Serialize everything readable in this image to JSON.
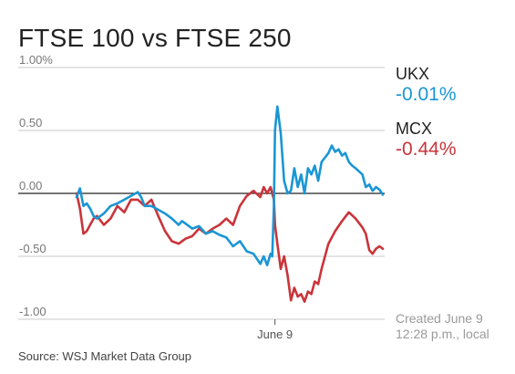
{
  "title": "FTSE 100 vs FTSE 250",
  "legend": [
    {
      "name": "UKX",
      "value": "-0.01%",
      "color": "#1a96d4"
    },
    {
      "name": "MCX",
      "value": "-0.44%",
      "color": "#c9343a"
    }
  ],
  "note_line1": "Created June 9",
  "note_line2": "12:28 p.m., local",
  "source": "Source: WSJ Market Data Group",
  "chart_data": {
    "type": "line",
    "ylim": [
      -1.0,
      1.0
    ],
    "yticks": [
      {
        "value": 1.0,
        "label": "1.00%"
      },
      {
        "value": 0.5,
        "label": "0.50"
      },
      {
        "value": 0.0,
        "label": "0.00"
      },
      {
        "value": -0.5,
        "label": "-0.50"
      },
      {
        "value": -1.0,
        "label": "-1.00"
      }
    ],
    "xlim": [
      0,
      100
    ],
    "xticks": [
      {
        "value": 58.3,
        "label": "June 9"
      }
    ],
    "series": [
      {
        "name": "UKX",
        "color": "#1a96d4",
        "x": [
          0,
          1,
          2,
          3,
          4,
          5,
          6,
          8,
          10,
          12,
          14,
          16,
          18,
          19,
          20,
          22,
          24,
          26,
          28,
          30,
          31,
          32,
          34,
          36,
          38,
          40,
          42,
          44,
          46,
          48,
          50,
          52,
          54,
          55,
          56,
          57,
          57.5,
          58,
          58.3,
          59,
          60,
          61,
          62,
          63,
          64,
          65,
          66,
          67,
          68,
          69,
          70,
          71,
          72,
          74,
          75,
          76,
          77,
          78,
          79,
          80,
          81,
          82,
          84,
          85,
          86,
          87,
          88,
          89,
          90
        ],
        "y": [
          -0.03,
          0.04,
          -0.1,
          -0.08,
          -0.12,
          -0.18,
          -0.2,
          -0.16,
          -0.1,
          -0.08,
          -0.05,
          -0.02,
          0.01,
          -0.03,
          -0.1,
          -0.1,
          -0.13,
          -0.16,
          -0.2,
          -0.25,
          -0.22,
          -0.24,
          -0.28,
          -0.26,
          -0.32,
          -0.3,
          -0.33,
          -0.35,
          -0.42,
          -0.38,
          -0.46,
          -0.48,
          -0.56,
          -0.5,
          -0.57,
          -0.48,
          -0.5,
          -0.1,
          0.5,
          0.69,
          0.48,
          0.1,
          0.0,
          0.02,
          0.2,
          0.05,
          0.15,
          0.0,
          0.2,
          0.15,
          0.22,
          0.1,
          0.25,
          0.32,
          0.38,
          0.33,
          0.35,
          0.3,
          0.32,
          0.25,
          0.22,
          0.2,
          0.15,
          0.05,
          0.07,
          0.02,
          0.05,
          0.03,
          -0.01
        ]
      },
      {
        "name": "MCX",
        "color": "#c9343a",
        "x": [
          0,
          1,
          2,
          3,
          4,
          5,
          6,
          8,
          10,
          12,
          14,
          16,
          18,
          20,
          22,
          24,
          26,
          28,
          30,
          32,
          34,
          36,
          38,
          40,
          42,
          44,
          46,
          48,
          50,
          52,
          54,
          55,
          56,
          57,
          58,
          58.3,
          59,
          60,
          61,
          62,
          63,
          64,
          65,
          66,
          67,
          68,
          69,
          70,
          71,
          72,
          74,
          76,
          78,
          80,
          82,
          84,
          85,
          86,
          87,
          88,
          89,
          90
        ],
        "y": [
          0.0,
          -0.12,
          -0.32,
          -0.3,
          -0.25,
          -0.2,
          -0.18,
          -0.25,
          -0.2,
          -0.1,
          -0.15,
          -0.05,
          -0.05,
          -0.1,
          -0.05,
          -0.18,
          -0.3,
          -0.38,
          -0.4,
          -0.36,
          -0.34,
          -0.28,
          -0.32,
          -0.28,
          -0.25,
          -0.2,
          -0.25,
          -0.1,
          -0.02,
          0.02,
          -0.03,
          0.05,
          0.0,
          0.05,
          -0.05,
          -0.25,
          -0.4,
          -0.6,
          -0.5,
          -0.65,
          -0.85,
          -0.75,
          -0.82,
          -0.8,
          -0.86,
          -0.78,
          -0.8,
          -0.7,
          -0.72,
          -0.6,
          -0.4,
          -0.3,
          -0.22,
          -0.15,
          -0.2,
          -0.27,
          -0.32,
          -0.45,
          -0.48,
          -0.44,
          -0.42,
          -0.44
        ]
      }
    ]
  }
}
